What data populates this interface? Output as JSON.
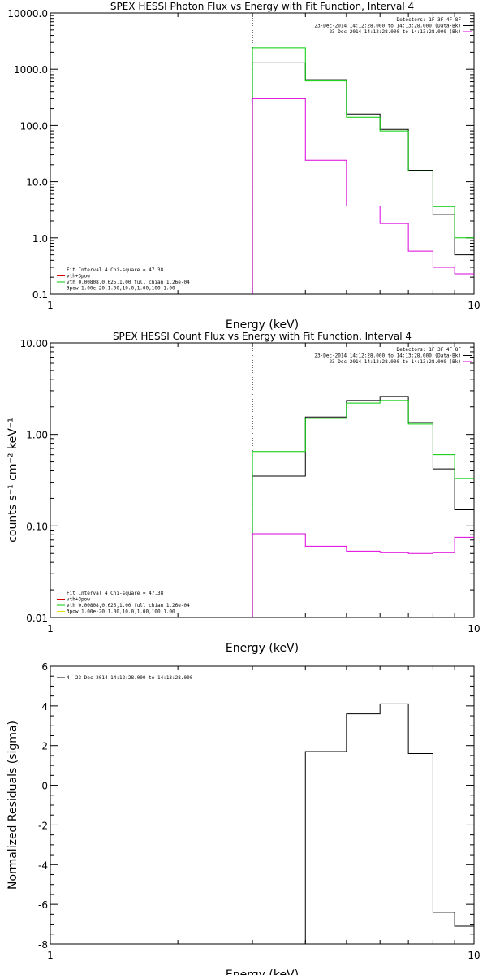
{
  "chart_data": [
    {
      "type": "line",
      "title": "SPEX HESSI Photon Flux vs Energy with Fit Function, Interval 4",
      "xlabel": "Energy (keV)",
      "ylabel": "",
      "xscale": "log",
      "yscale": "log",
      "xlim": [
        1,
        10
      ],
      "ylim": [
        0.1,
        10000
      ],
      "xticks": [
        "1",
        "10"
      ],
      "yticks": [
        "0.1",
        "1.0",
        "10.0",
        "100.0",
        "1000.0",
        "10000.0"
      ],
      "marker_x": 3,
      "edges": [
        3,
        4,
        5,
        6,
        7,
        8,
        9,
        10
      ],
      "series": [
        {
          "color": "#000000",
          "values": [
            1300,
            650,
            160,
            85,
            16,
            2.6,
            0.5
          ]
        },
        {
          "color": "#00cc00",
          "values": [
            2400,
            620,
            140,
            80,
            15.5,
            3.6,
            1.0
          ]
        },
        {
          "color": "#dd00dd",
          "values": [
            300,
            24,
            3.7,
            1.8,
            0.58,
            0.3,
            0.23
          ]
        }
      ],
      "legend_topright": [
        {
          "text": "Detectors: 1F 3F 4F 8F",
          "color": ""
        },
        {
          "text": "23-Dec-2014 14:12:28.000 to 14:13:28.000 (Data-Bk)",
          "color": "#000000"
        },
        {
          "text": "23-Dec-2014 14:12:28.000 to 14:13:28.000 (Bk)",
          "color": "#dd00dd"
        }
      ],
      "legend_bottomleft": [
        {
          "text": "Fit Interval 4   Chi-square = 47.38",
          "color": ""
        },
        {
          "text": "vth+3pow",
          "color": "#dd0000"
        },
        {
          "text": "vth 0.00808,0.625,1.00  full chian 1.26e-04",
          "color": "#00cc00"
        },
        {
          "text": "3pow 1.00e-20,1.00,10.0,1.00,100,1.00",
          "color": "#dddd00"
        }
      ]
    },
    {
      "type": "line",
      "title": "SPEX HESSI Count Flux vs Energy with Fit Function, Interval 4",
      "xlabel": "Energy (keV)",
      "ylabel": "counts s⁻¹ cm⁻² keV⁻¹",
      "xscale": "log",
      "yscale": "log",
      "xlim": [
        1,
        10
      ],
      "ylim": [
        0.01,
        10
      ],
      "xticks": [
        "1",
        "10"
      ],
      "yticks": [
        "0.01",
        "0.10",
        "1.00",
        "10.00"
      ],
      "marker_x": 3,
      "edges": [
        3,
        4,
        5,
        6,
        7,
        8,
        9,
        10
      ],
      "series": [
        {
          "color": "#000000",
          "values": [
            0.35,
            1.55,
            2.35,
            2.6,
            1.35,
            0.42,
            0.15
          ]
        },
        {
          "color": "#00cc00",
          "values": [
            0.65,
            1.5,
            2.2,
            2.35,
            1.3,
            0.6,
            0.33
          ]
        },
        {
          "color": "#dd00dd",
          "values": [
            0.082,
            0.06,
            0.053,
            0.051,
            0.05,
            0.051,
            0.075
          ]
        }
      ],
      "legend_topright": [
        {
          "text": "Detectors: 1F 3F 4F 8F",
          "color": ""
        },
        {
          "text": "23-Dec-2014 14:12:28.000 to 14:13:28.000 (Data-Bk)",
          "color": "#000000"
        },
        {
          "text": "23-Dec-2014 14:12:28.000 to 14:13:28.000 (Bk)",
          "color": "#dd00dd"
        }
      ],
      "legend_bottomleft": [
        {
          "text": "Fit Interval 4   Chi-square = 47.38",
          "color": ""
        },
        {
          "text": "vth+3pow",
          "color": "#dd0000"
        },
        {
          "text": "vth 0.00808,0.625,1.00  full chian 1.26e-04",
          "color": "#00cc00"
        },
        {
          "text": "3pow 1.00e-20,1.00,10.0,1.00,100,1.00",
          "color": "#dddd00"
        }
      ]
    },
    {
      "type": "line",
      "title": "",
      "xlabel": "Energy (keV)",
      "ylabel": "Normalized Residuals (sigma)",
      "xscale": "log",
      "yscale": "linear",
      "xlim": [
        1,
        10
      ],
      "ylim": [
        -8,
        6
      ],
      "xticks": [
        "1",
        "10"
      ],
      "yticks": [
        "-8",
        "-6",
        "-4",
        "-2",
        "0",
        "2",
        "4",
        "6"
      ],
      "edges": [
        3,
        4,
        5,
        6,
        7,
        8,
        9,
        10
      ],
      "series": [
        {
          "color": "#000000",
          "values": [
            -8.0,
            1.7,
            3.6,
            4.1,
            1.6,
            -6.4,
            -7.1
          ]
        }
      ],
      "legend_topleft": [
        {
          "text": "4, 23-Dec-2014 14:12:28.000 to 14:13:28.000",
          "color": "#000000"
        }
      ]
    }
  ]
}
